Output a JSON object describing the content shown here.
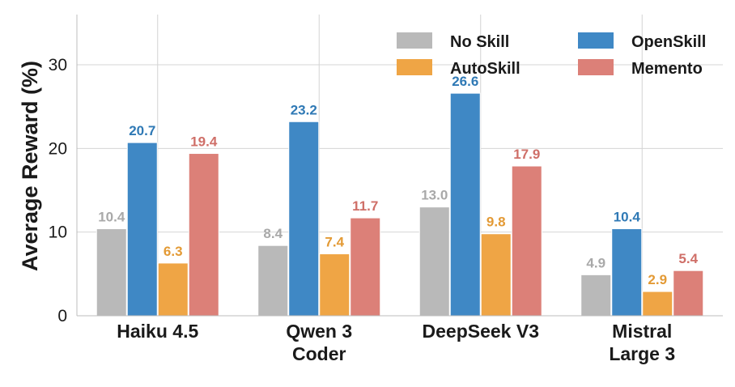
{
  "chart_data": {
    "type": "bar",
    "title": "",
    "xlabel": "",
    "ylabel": "Average Reward (%)",
    "ylim": [
      0,
      36
    ],
    "yticks": [
      0,
      10,
      20,
      30
    ],
    "grid": true,
    "legend_position": "top-right",
    "categories": [
      [
        "Haiku 4.5"
      ],
      [
        "Qwen 3",
        "Coder"
      ],
      [
        "DeepSeek V3"
      ],
      [
        "Mistral",
        "Large 3"
      ]
    ],
    "series": [
      {
        "name": "No Skill",
        "color": "#b9b9b9",
        "label_color": "#a9a9a9",
        "values": [
          10.4,
          8.4,
          13.0,
          4.9
        ],
        "labels": [
          "10.4",
          "8.4",
          "13.0",
          "4.9"
        ]
      },
      {
        "name": "OpenSkill",
        "color": "#3f88c5",
        "label_color": "#2f79b5",
        "values": [
          20.7,
          23.2,
          26.6,
          10.4
        ],
        "labels": [
          "20.7",
          "23.2",
          "26.6",
          "10.4"
        ]
      },
      {
        "name": "AutoSkill",
        "color": "#efa545",
        "label_color": "#e39a35",
        "values": [
          6.3,
          7.4,
          9.8,
          2.9
        ],
        "labels": [
          "6.3",
          "7.4",
          "9.8",
          "2.9"
        ]
      },
      {
        "name": "Memento",
        "color": "#dc8078",
        "label_color": "#cf6f68",
        "values": [
          19.4,
          11.7,
          17.9,
          5.4
        ],
        "labels": [
          "19.4",
          "11.7",
          "17.9",
          "5.4"
        ]
      }
    ]
  }
}
